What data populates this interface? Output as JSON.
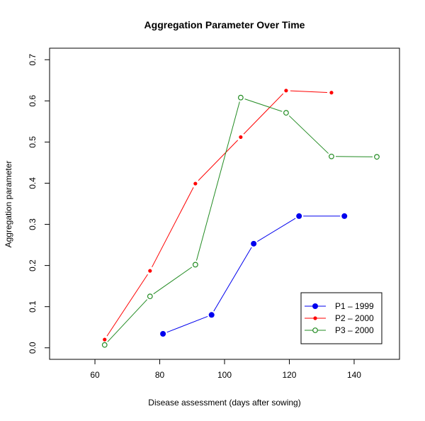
{
  "chart_data": {
    "type": "line",
    "title": "Aggregation Parameter Over Time",
    "xlabel": "Disease assessment (days after sowing)",
    "ylabel": "Aggregation parameter",
    "xlim": [
      50,
      150
    ],
    "ylim": [
      0,
      0.7
    ],
    "xticks": [
      60,
      80,
      100,
      120,
      140
    ],
    "yticks": [
      0.0,
      0.1,
      0.2,
      0.3,
      0.4,
      0.5,
      0.6,
      0.7
    ],
    "ytick_labels": [
      "0.0",
      "0.1",
      "0.2",
      "0.3",
      "0.4",
      "0.5",
      "0.6",
      "0.7"
    ],
    "grid": false,
    "legend_position": "bottom-right",
    "series": [
      {
        "name": "P1 – 1999",
        "color": "#0000ee",
        "marker": "filled-large",
        "x": [
          81,
          96,
          109,
          123,
          137
        ],
        "y": [
          0.034,
          0.08,
          0.253,
          0.32,
          0.32
        ]
      },
      {
        "name": "P2 – 2000",
        "color": "#ff0000",
        "marker": "filled-small",
        "x": [
          63,
          77,
          91,
          105,
          119,
          133
        ],
        "y": [
          0.02,
          0.187,
          0.399,
          0.512,
          0.625,
          0.62
        ]
      },
      {
        "name": "P3 – 2000",
        "color": "#228b22",
        "marker": "open",
        "x": [
          63,
          77,
          91,
          105,
          119,
          133,
          147
        ],
        "y": [
          0.007,
          0.125,
          0.202,
          0.608,
          0.571,
          0.465,
          0.464
        ]
      }
    ]
  }
}
